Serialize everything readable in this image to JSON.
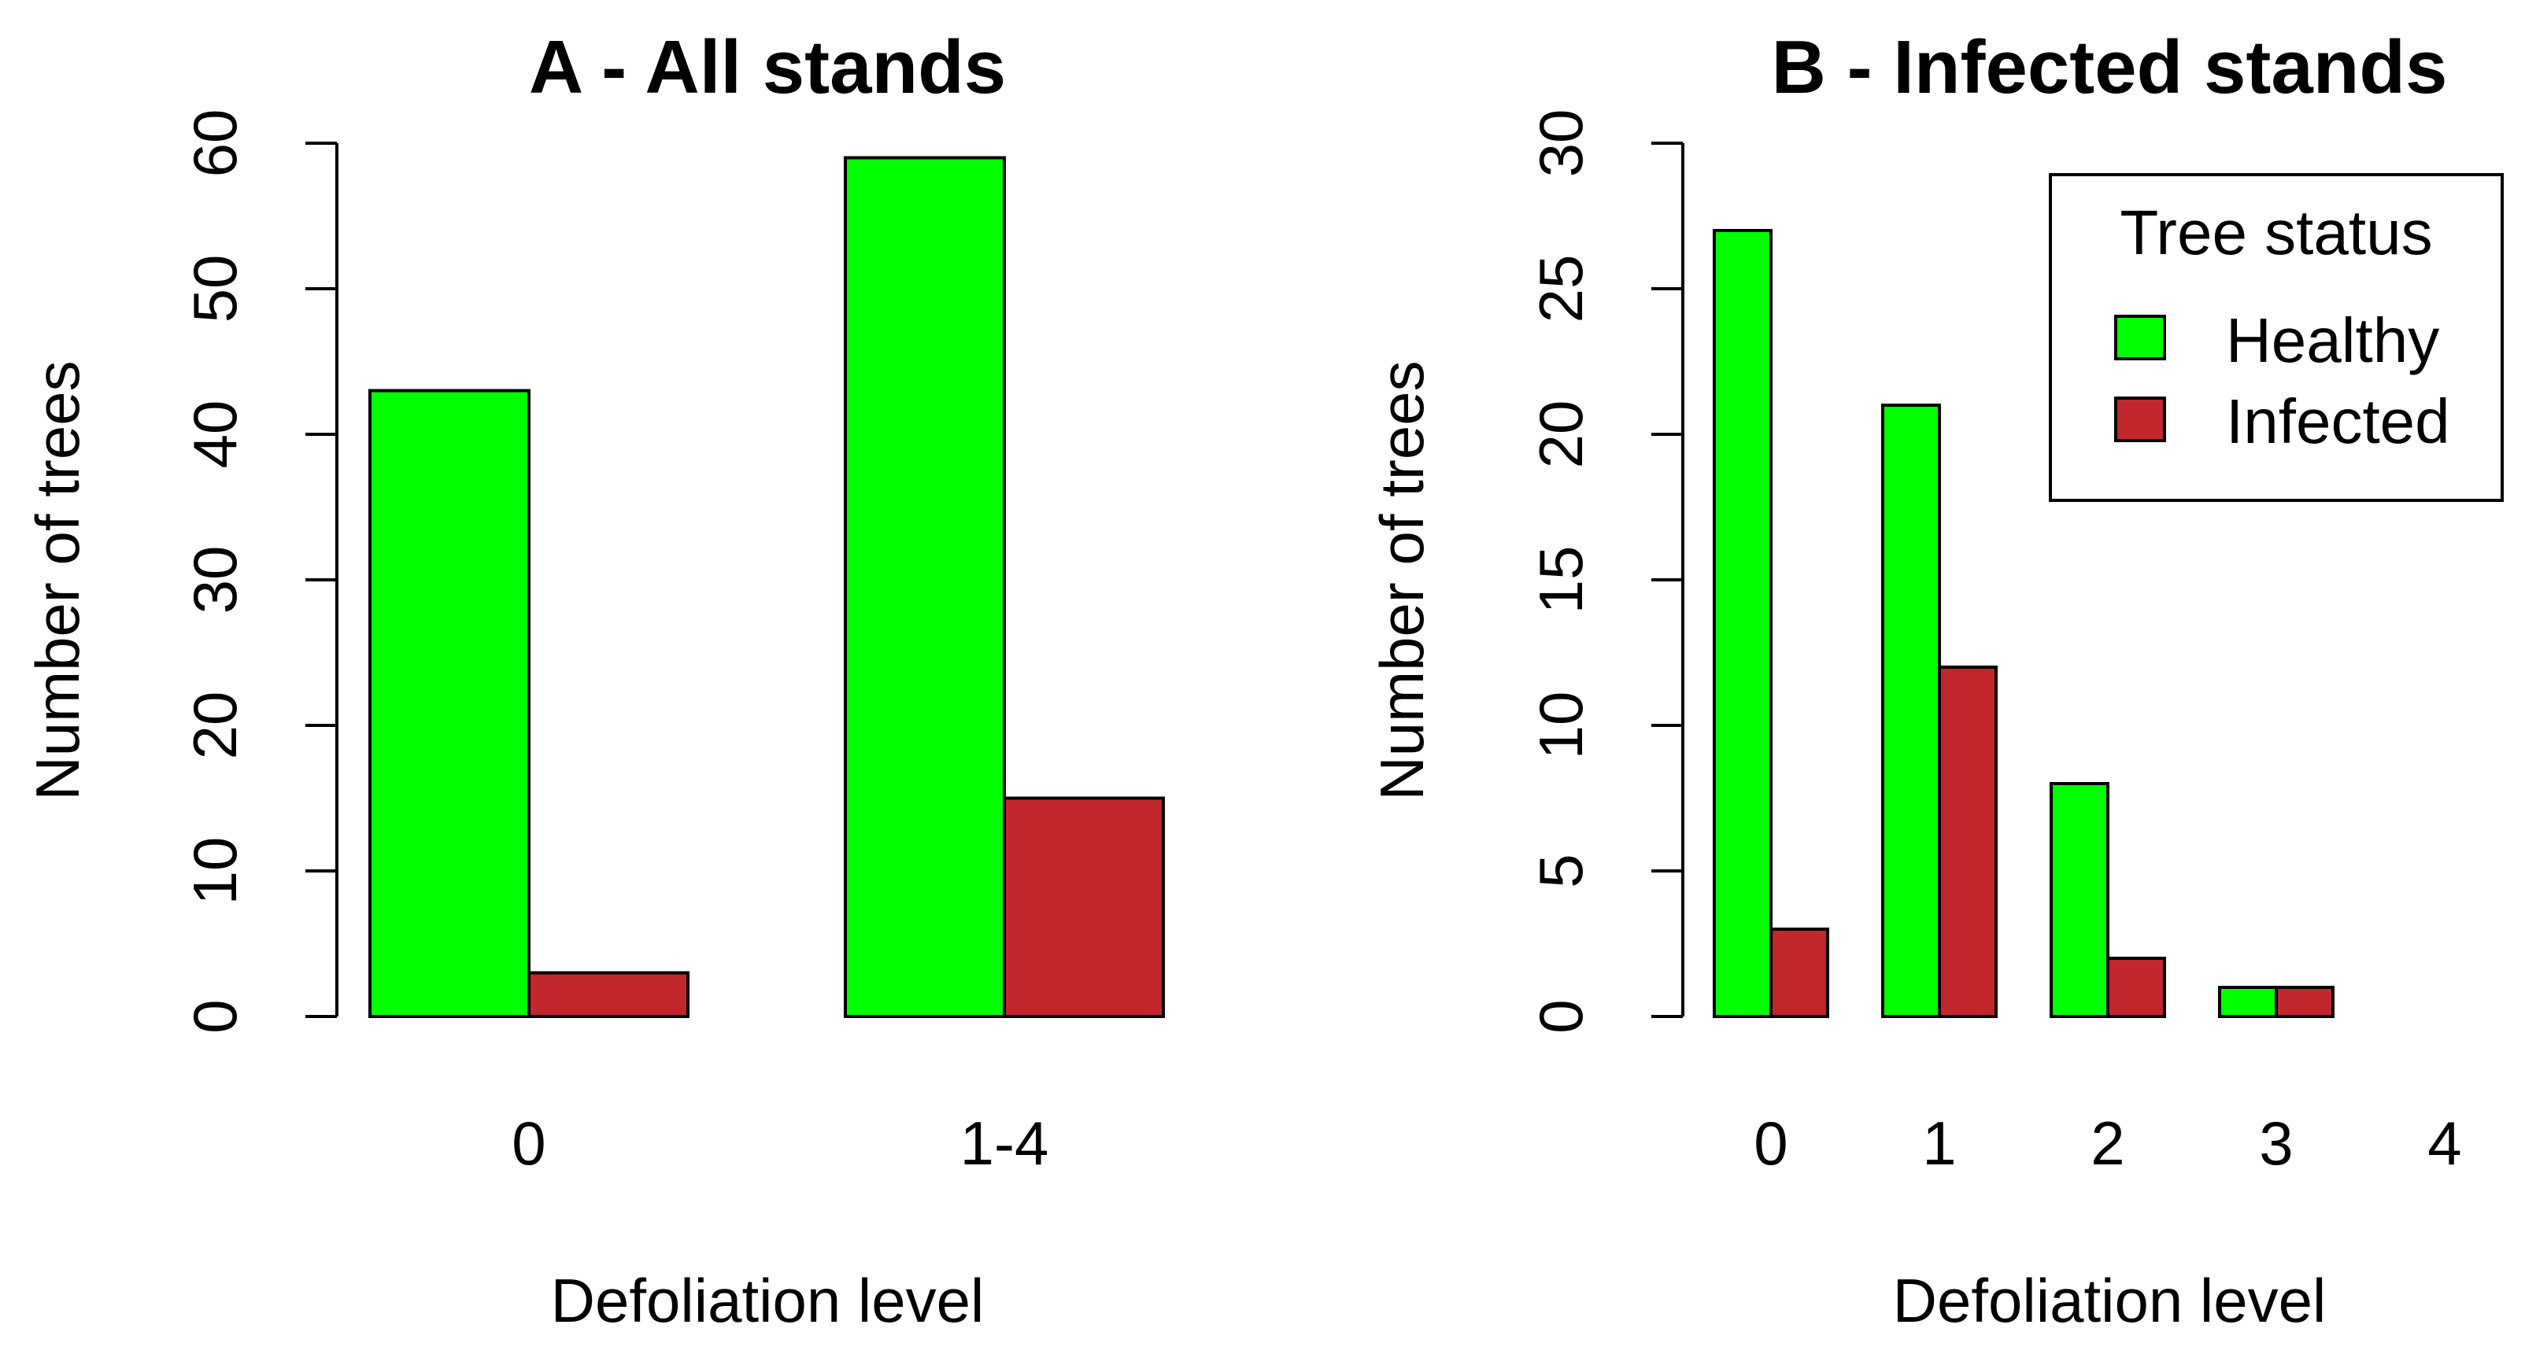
{
  "colors": {
    "healthy": "#00ff00",
    "infected": "#c0272d",
    "axis": "#000000",
    "background": "#ffffff"
  },
  "legend": {
    "title": "Tree status",
    "entries": [
      "Healthy",
      "Infected"
    ],
    "placement": "top-right of panel B"
  },
  "chart_data": [
    {
      "type": "bar",
      "title": "A - All stands",
      "xlabel": "Defoliation level",
      "ylabel": "Number of trees",
      "categories": [
        "0",
        "1-4"
      ],
      "yticks": [
        "0",
        "10",
        "20",
        "30",
        "40",
        "50",
        "60"
      ],
      "ylim": [
        0,
        60
      ],
      "series": [
        {
          "name": "Healthy",
          "values": [
            43,
            59
          ]
        },
        {
          "name": "Infected",
          "values": [
            3,
            15
          ]
        }
      ]
    },
    {
      "type": "bar",
      "title": "B - Infected stands",
      "xlabel": "Defoliation level",
      "ylabel": "Number of trees",
      "categories": [
        "0",
        "1",
        "2",
        "3",
        "4"
      ],
      "yticks": [
        "0",
        "5",
        "10",
        "15",
        "20",
        "25",
        "30"
      ],
      "ylim": [
        0,
        30
      ],
      "series": [
        {
          "name": "Healthy",
          "values": [
            27,
            21,
            8,
            1,
            0
          ]
        },
        {
          "name": "Infected",
          "values": [
            3,
            12,
            2,
            1,
            0
          ]
        }
      ]
    }
  ]
}
